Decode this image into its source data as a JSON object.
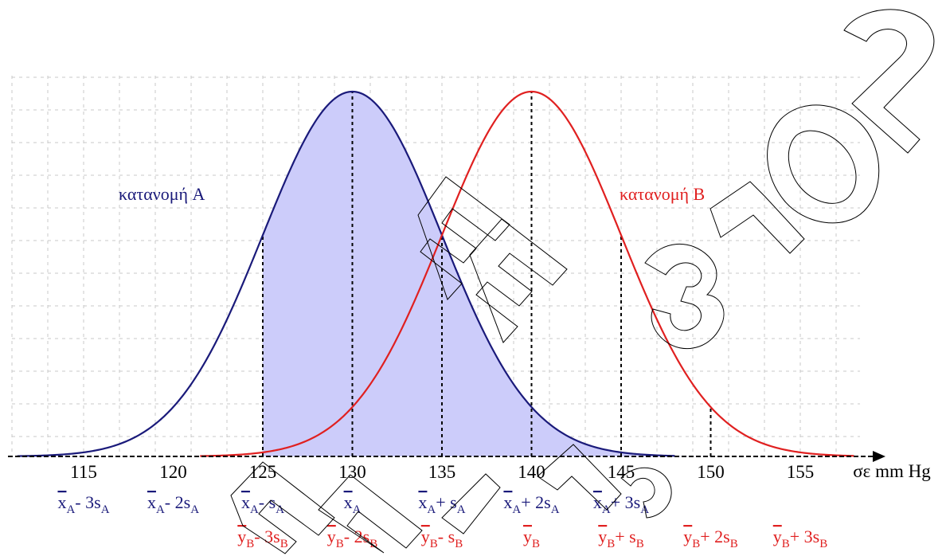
{
  "chart_data": {
    "type": "line",
    "title": "",
    "xlabel": "σε mm Hg",
    "ylabel": "",
    "xlim": [
      110,
      158
    ],
    "x_ticks": [
      115,
      120,
      125,
      130,
      135,
      140,
      145,
      150,
      155
    ],
    "grid": true,
    "series": [
      {
        "name": "κατανομή A",
        "distribution": "normal",
        "mean": 130,
        "sd": 5,
        "color": "#1a1a7a",
        "fill": "#ccccfa",
        "shaded_interval": [
          125,
          150
        ],
        "dotted_markers": [
          125,
          130,
          135,
          140,
          145
        ],
        "stat_labels": [
          {
            "x": 115,
            "base": "x",
            "op": "- 3s"
          },
          {
            "x": 120,
            "base": "x",
            "op": "- 2s"
          },
          {
            "x": 125,
            "base": "x",
            "op": "- s"
          },
          {
            "x": 130,
            "base": "x",
            "op": ""
          },
          {
            "x": 135,
            "base": "x",
            "op": "+ s"
          },
          {
            "x": 140,
            "base": "x",
            "op": "+ 2s"
          },
          {
            "x": 145,
            "base": "x",
            "op": "+ 3s"
          }
        ],
        "subscript": "A"
      },
      {
        "name": "κατανομή B",
        "distribution": "normal",
        "mean": 140,
        "sd": 5,
        "color": "#e02020",
        "dotted_markers": [
          140,
          145,
          150
        ],
        "stat_labels": [
          {
            "x": 125,
            "base": "y",
            "op": "- 3s"
          },
          {
            "x": 130,
            "base": "y",
            "op": "- 2s"
          },
          {
            "x": 135,
            "base": "y",
            "op": "- s"
          },
          {
            "x": 140,
            "base": "y",
            "op": ""
          },
          {
            "x": 145,
            "base": "y",
            "op": "+ s"
          },
          {
            "x": 150,
            "base": "y",
            "op": "+ 2s"
          },
          {
            "x": 155,
            "base": "y",
            "op": "+ 3s"
          }
        ],
        "subscript": "B"
      }
    ],
    "watermark": "ΕΕ 2013"
  }
}
